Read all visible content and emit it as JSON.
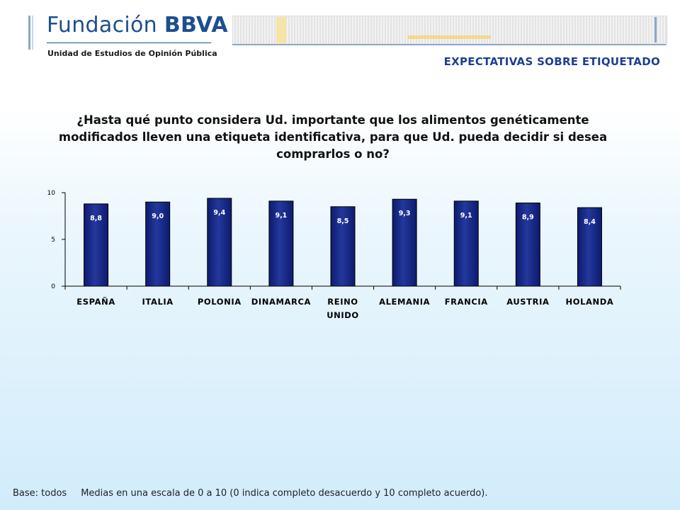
{
  "header": {
    "logo_part1": "Fundación",
    "logo_part2": "BBVA",
    "organization": "Unidad de Estudios de Opinión Pública",
    "section_title": "EXPECTATIVAS SOBRE ETIQUETADO"
  },
  "question": "¿Hasta qué punto considera Ud. importante que los alimentos genéticamente modificados lleven una etiqueta identificativa, para que Ud. pueda decidir si desea comprarlos o no?",
  "footer": {
    "base": "Base: todos",
    "note": "Medias en una escala de 0 a 10 (0 indica completo desacuerdo  y 10  completo acuerdo)."
  },
  "colors": {
    "bar": "#0d1b6e",
    "bar_light": "#23389c",
    "title": "#1d3f8f",
    "logo": "#1d4e8f"
  },
  "chart_data": {
    "type": "bar",
    "categories": [
      [
        "ESPAÑA"
      ],
      [
        "ITALIA"
      ],
      [
        "POLONIA"
      ],
      [
        "DINAMARCA"
      ],
      [
        "REINO",
        "UNIDO"
      ],
      [
        "ALEMANIA"
      ],
      [
        "FRANCIA"
      ],
      [
        "AUSTRIA"
      ],
      [
        "HOLANDA"
      ]
    ],
    "values": [
      8.8,
      9.0,
      9.4,
      9.1,
      8.5,
      9.3,
      9.1,
      8.9,
      8.4
    ],
    "value_labels": [
      "8,8",
      "9,0",
      "9,4",
      "9,1",
      "8,5",
      "9,3",
      "9,1",
      "8,9",
      "8,4"
    ],
    "yticks": [
      "0",
      "5",
      "10"
    ],
    "ylim": [
      0,
      10
    ],
    "grid": false,
    "legend": "none"
  }
}
